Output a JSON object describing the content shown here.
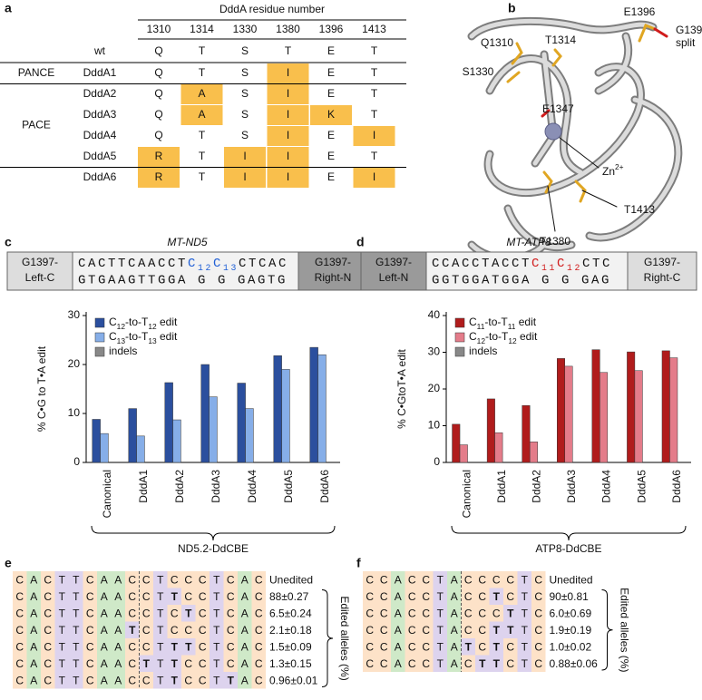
{
  "panel_labels": [
    "a",
    "b",
    "c",
    "d",
    "e",
    "f"
  ],
  "table": {
    "header": "DddA residue number",
    "columns": [
      "1310",
      "1314",
      "1330",
      "1380",
      "1396",
      "1413"
    ],
    "wt_label": "wt",
    "wt": [
      "Q",
      "T",
      "S",
      "T",
      "E",
      "T"
    ],
    "groups": [
      {
        "label": "PANCE",
        "rows": [
          {
            "name": "DddA1",
            "cells": [
              "Q",
              "T",
              "S",
              "I",
              "E",
              "T"
            ]
          }
        ]
      },
      {
        "label": "PACE",
        "rows": [
          {
            "name": "DddA2",
            "cells": [
              "Q",
              "A",
              "S",
              "I",
              "E",
              "T"
            ]
          },
          {
            "name": "DddA3",
            "cells": [
              "Q",
              "A",
              "S",
              "I",
              "K",
              "T"
            ]
          },
          {
            "name": "DddA4",
            "cells": [
              "Q",
              "T",
              "S",
              "I",
              "E",
              "I"
            ]
          },
          {
            "name": "DddA5",
            "cells": [
              "R",
              "T",
              "I",
              "I",
              "E",
              "T"
            ]
          }
        ]
      },
      {
        "rows": [
          {
            "name": "DddA6",
            "cells": [
              "R",
              "T",
              "I",
              "I",
              "E",
              "I"
            ]
          }
        ]
      }
    ]
  },
  "structure": {
    "labels": [
      {
        "text": "Q1310",
        "color": "#e0a622"
      },
      {
        "text": "T1314",
        "color": "#e0a622"
      },
      {
        "text": "S1330",
        "color": "#e0a622"
      },
      {
        "text": "E1396",
        "color": "#e0a622"
      },
      {
        "text": "G1397",
        "color": "#d01c1c"
      },
      {
        "text": "split",
        "color": "#d01c1c"
      },
      {
        "text": "E1347",
        "color": "#d01c1c"
      },
      {
        "text": "Zn2+",
        "color": "#111111"
      },
      {
        "text": "T1413",
        "color": "#e0a622"
      },
      {
        "text": "T1380",
        "color": "#e0a622"
      }
    ]
  },
  "chart_data": [
    {
      "type": "bar",
      "title": "MT-ND5",
      "y_label": "% C•G to T•A edit",
      "group_label": "ND5.2-DdCBE",
      "sequence": {
        "left": [
          "G1397-",
          "Left-C"
        ],
        "top_pre": "CACTTCAACCT",
        "top_hi": "C12C13",
        "top_post": "CTCAC",
        "bottom": "GTGAAGTTGGA G G GAGTG",
        "right": [
          "G1397-",
          "Right-N"
        ],
        "hi_color": "#1f5fd6"
      },
      "categories": [
        "Canonical",
        "DddA1",
        "DddA2",
        "DddA3",
        "DddA4",
        "DddA5",
        "DddA6"
      ],
      "series": [
        {
          "name": "C12-to-T12 edit",
          "color": "#2b4f9e",
          "values": [
            8.8,
            11,
            16.3,
            20,
            16.2,
            21.8,
            23.5
          ]
        },
        {
          "name": "C13-to-T13 edit",
          "color": "#86aee8",
          "values": [
            5.9,
            5.4,
            8.7,
            13.4,
            11,
            19,
            22
          ]
        },
        {
          "name": "indels",
          "color": "#888888",
          "values": [
            0,
            0,
            0,
            0,
            0,
            0,
            0
          ]
        }
      ],
      "ylim": [
        0,
        30
      ],
      "yticks": [
        0,
        10,
        20,
        30
      ]
    },
    {
      "type": "bar",
      "title": "MT-ATP8",
      "y_label": "% C•GtoT•A edit",
      "group_label": "ATP8-DdCBE",
      "sequence": {
        "left": [
          "G1397-",
          "Left-N"
        ],
        "top_pre": "CCACCTACCT",
        "top_hi": "C11C12",
        "top_post": "CTC",
        "bottom": "GGTGGATGGA G G GAG",
        "right": [
          "G1397-",
          "Right-C"
        ],
        "hi_color": "#d01c1c"
      },
      "categories": [
        "Canonical",
        "DddA1",
        "DddA2",
        "DddA3",
        "DddA4",
        "DddA5",
        "DddA6"
      ],
      "series": [
        {
          "name": "C11-to-T11 edit",
          "color": "#b01c1c",
          "values": [
            10.4,
            17.3,
            15.5,
            28.3,
            30.7,
            30.1,
            30.4
          ]
        },
        {
          "name": "C12-to-T12 edit",
          "color": "#e47c8a",
          "values": [
            4.8,
            8.1,
            5.6,
            26.2,
            24.5,
            25,
            28.5
          ]
        },
        {
          "name": "indels",
          "color": "#888888",
          "values": [
            0,
            0,
            0,
            0,
            0,
            0,
            0
          ]
        }
      ],
      "ylim": [
        0,
        40
      ],
      "yticks": [
        0,
        10,
        20,
        30,
        40
      ]
    }
  ],
  "alleles_e": {
    "side_label": "Edited alleles (%)",
    "rows": [
      {
        "seq": "CACTTCAACCTCCCTCAC",
        "value": "Unedited"
      },
      {
        "seq": "CACTTCAACCTTCCTCAC",
        "value": "88±0.27"
      },
      {
        "seq": "CACTTCAACCTCTCTCAC",
        "value": "6.5±0.24"
      },
      {
        "seq": "CACTTCAATCTCCCTCAC",
        "value": "2.1±0.18"
      },
      {
        "seq": "CACTTCAACCTTTCTCAC",
        "value": "1.5±0.09"
      },
      {
        "seq": "CACTTCAACTTTCCTCAC",
        "value": "1.3±0.15"
      },
      {
        "seq": "CACTTCAACCTTCCTTAC",
        "value": "0.96±0.01"
      }
    ]
  },
  "alleles_f": {
    "side_label": "Edited alleles (%)",
    "rows": [
      {
        "seq": "CCACCTACCCCTC",
        "value": "Unedited"
      },
      {
        "seq": "CCACCTACCTCTC",
        "value": "90±0.81"
      },
      {
        "seq": "CCACCTACCCTTC",
        "value": "6.0±0.69"
      },
      {
        "seq": "CCACCTACCTTTC",
        "value": "1.9±0.19"
      },
      {
        "seq": "CCACCTATCTCTC",
        "value": "1.0±0.02"
      },
      {
        "seq": "CCACCTACTTCTC",
        "value": "0.88±0.06"
      }
    ]
  }
}
